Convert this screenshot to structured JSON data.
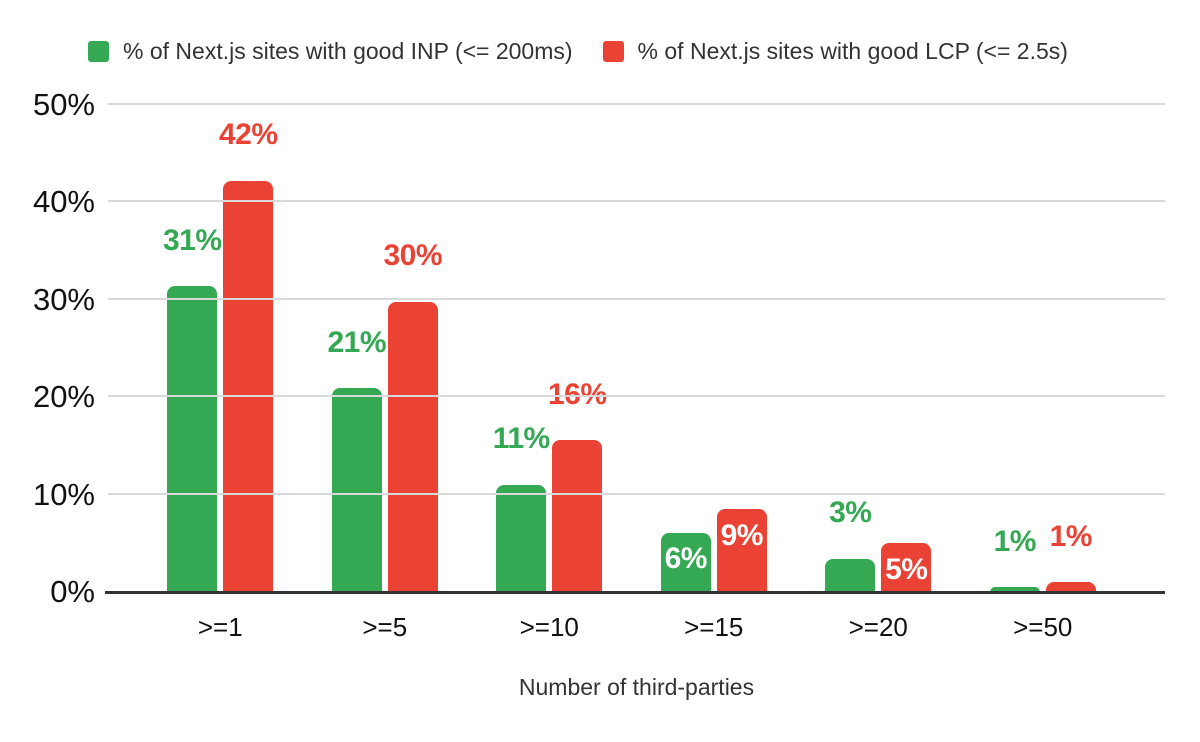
{
  "legend": {
    "items": [
      {
        "label": "% of Next.js sites with good INP (<= 200ms)",
        "color": "#34A853"
      },
      {
        "label": "% of Next.js sites with good LCP (<= 2.5s)",
        "color": "#EA4335"
      }
    ]
  },
  "chart_data": {
    "type": "bar",
    "title": "",
    "xlabel": "Number of third-parties",
    "ylabel": "",
    "categories": [
      ">=1",
      ">=5",
      ">=10",
      ">=15",
      ">=20",
      ">=50"
    ],
    "ylim": [
      0,
      50
    ],
    "y_ticks": [
      "0%",
      "10%",
      "20%",
      "30%",
      "40%",
      "50%"
    ],
    "grid": true,
    "legend_position": "top",
    "series": [
      {
        "name": "% of Next.js sites with good INP (<= 200ms)",
        "color": "#34A853",
        "values": [
          31,
          21,
          11,
          6,
          3,
          1
        ],
        "labels": [
          "31%",
          "21%",
          "11%",
          "6%",
          "3%",
          "1%"
        ],
        "bar_heights_pct": [
          31.4,
          20.9,
          11.0,
          6.1,
          3.4,
          0.5
        ],
        "label_placement": [
          "outside",
          "outside",
          "outside",
          "inside",
          "outside",
          "outside"
        ]
      },
      {
        "name": "% of Next.js sites with good LCP (<= 2.5s)",
        "color": "#EA4335",
        "values": [
          42,
          30,
          16,
          9,
          5,
          1
        ],
        "labels": [
          "42%",
          "30%",
          "16%",
          "9%",
          "5%",
          "1%"
        ],
        "bar_heights_pct": [
          42.2,
          29.8,
          15.6,
          8.5,
          5.0,
          1.0
        ],
        "label_placement": [
          "outside",
          "outside",
          "outside",
          "inside",
          "inside",
          "outside"
        ]
      }
    ]
  },
  "colors": {
    "inp_green": "#34A853",
    "lcp_red": "#EA4335",
    "gridline": "#D9D9D9",
    "axis_line": "#333333",
    "tick_text": "#111111",
    "label_text": "#333333",
    "inside_label": "#FFFFFF",
    "background": "#FFFFFF"
  }
}
